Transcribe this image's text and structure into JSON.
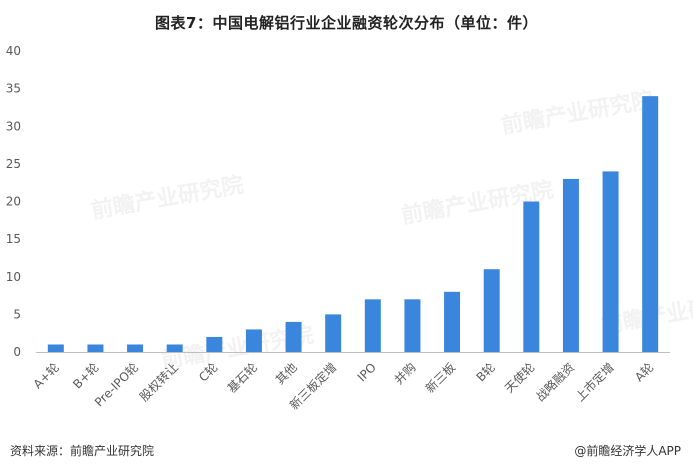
{
  "title": "图表7：中国电解铝行业企业融资轮次分布（单位：件）",
  "footer": {
    "source": "资料来源：前瞻产业研究院",
    "credit": "@前瞻经济学人APP"
  },
  "watermark": "前瞻产业研究院",
  "colors": {
    "bar": "#3b86dd",
    "axis": "#bfbfbf",
    "text": "#595959"
  },
  "chart_data": {
    "type": "bar",
    "title": "图表7：中国电解铝行业企业融资轮次分布（单位：件）",
    "categories": [
      "A+轮",
      "B+轮",
      "Pre-IPO轮",
      "股权转让",
      "C轮",
      "基石轮",
      "其他",
      "新三板定增",
      "IPO",
      "并购",
      "新三板",
      "B轮",
      "天使轮",
      "战略融资",
      "上市定增",
      "A轮"
    ],
    "values": [
      1,
      1,
      1,
      1,
      2,
      3,
      4,
      5,
      7,
      7,
      8,
      11,
      20,
      23,
      24,
      34
    ],
    "yticks": [
      0,
      5,
      10,
      15,
      20,
      25,
      30,
      35,
      40
    ],
    "ylim": [
      0,
      40
    ],
    "grid": false,
    "legend": "none"
  }
}
